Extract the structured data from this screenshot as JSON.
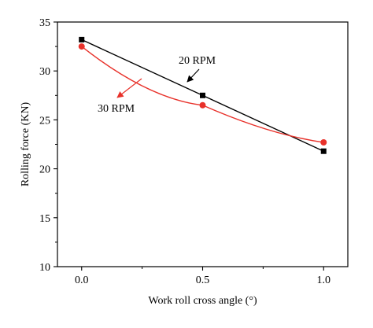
{
  "chart_data": {
    "type": "line",
    "x": [
      0.0,
      0.5,
      1.0
    ],
    "xticks": [
      "0.0",
      "0.5",
      "1.0"
    ],
    "yticks": [
      "10",
      "15",
      "20",
      "25",
      "30",
      "35"
    ],
    "xlim": [
      -0.1,
      1.1
    ],
    "ylim": [
      10,
      35
    ],
    "xlabel": "Work roll cross angle (°)",
    "ylabel": "Rolling force (KN)",
    "grid": false,
    "series": [
      {
        "name": "20 RPM",
        "values": [
          33.2,
          27.5,
          21.8
        ],
        "color": "#000000",
        "marker": "square"
      },
      {
        "name": "30 RPM",
        "values": [
          32.5,
          26.5,
          22.7
        ],
        "color": "#e8312a",
        "marker": "circle"
      }
    ],
    "annotations": [
      {
        "text": "20 RPM",
        "color": "#000000",
        "series": "20 RPM"
      },
      {
        "text": "30 RPM",
        "color": "#e8312a",
        "series": "30 RPM"
      }
    ]
  }
}
